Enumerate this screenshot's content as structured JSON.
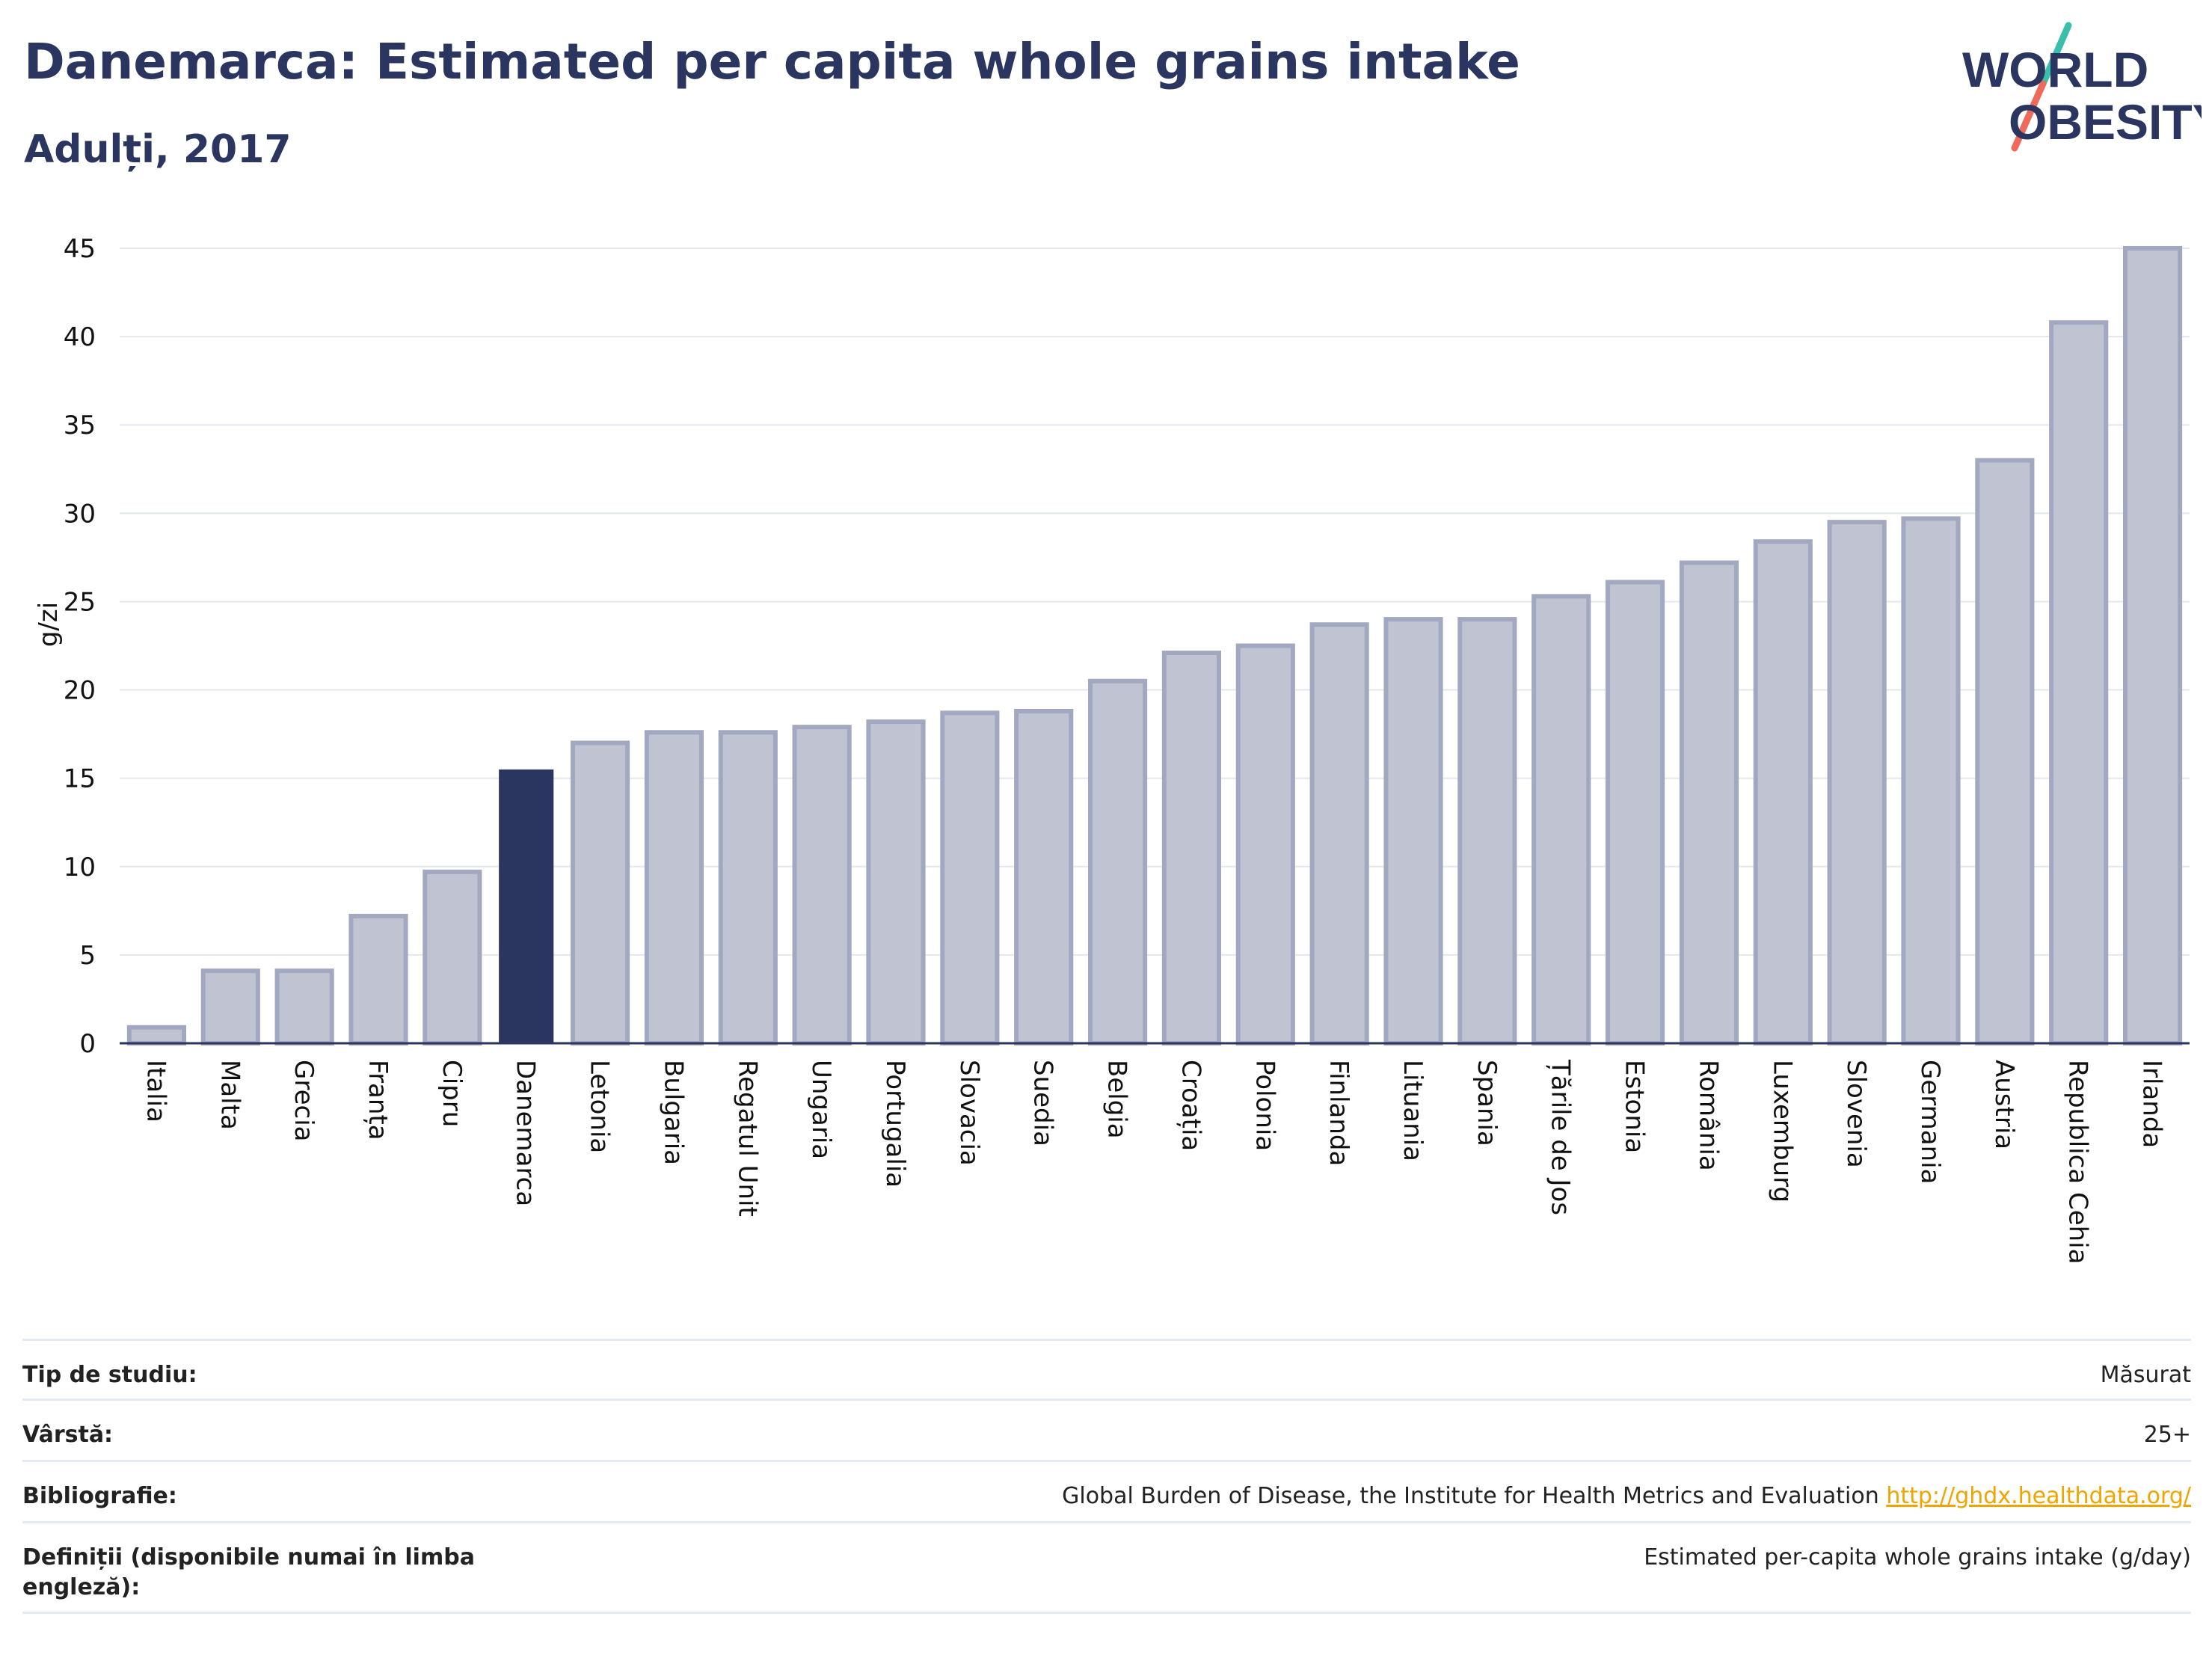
{
  "header": {
    "title": "Danemarca: Estimated per capita whole grains intake",
    "subtitle": "Adulți, 2017"
  },
  "logo": {
    "line1": "WORLD",
    "line2": "OBESITY"
  },
  "colors": {
    "highlight_bar": "#2b3660",
    "bar_fill": "#c0c4d2",
    "bar_stroke": "#a2a8c0",
    "grid": "#e5e7ee",
    "text": "#2b3660",
    "logo_teal": "#3bbfad",
    "logo_coral": "#ef6a5a",
    "link": "#f0a400"
  },
  "chart_data": {
    "type": "bar",
    "title": "Danemarca: Estimated per capita whole grains intake",
    "subtitle": "Adulți, 2017",
    "ylabel": "g/zi",
    "xlabel": "",
    "ylim": [
      0,
      45
    ],
    "yticks": [
      0,
      5,
      10,
      15,
      20,
      25,
      30,
      35,
      40,
      45
    ],
    "grid": true,
    "highlight": "Danemarca",
    "categories": [
      "Italia",
      "Malta",
      "Grecia",
      "Franța",
      "Cipru",
      "Danemarca",
      "Letonia",
      "Bulgaria",
      "Regatul Unit",
      "Ungaria",
      "Portugalia",
      "Slovacia",
      "Suedia",
      "Belgia",
      "Croația",
      "Polonia",
      "Finlanda",
      "Lituania",
      "Spania",
      "Țările de Jos",
      "Estonia",
      "România",
      "Luxemburg",
      "Slovenia",
      "Germania",
      "Austria",
      "Republica Cehia",
      "Irlanda"
    ],
    "values": [
      0.9,
      4.1,
      4.1,
      7.2,
      9.7,
      15.5,
      17.0,
      17.6,
      17.6,
      17.9,
      18.2,
      18.7,
      18.8,
      20.5,
      22.1,
      22.5,
      23.7,
      24.0,
      24.0,
      25.3,
      26.1,
      27.2,
      28.4,
      29.5,
      29.7,
      33.0,
      40.8,
      45.0
    ]
  },
  "info": {
    "rows": [
      {
        "label": "Tip de studiu:",
        "value": "Măsurat"
      },
      {
        "label": "Vârstă:",
        "value": "25+"
      },
      {
        "label": "Bibliografie:",
        "value": "Global Burden of Disease, the Institute for Health Metrics and Evaluation",
        "link": "http://ghdx.healthdata.org/"
      },
      {
        "label": "Definiții (disponibile numai în limba engleză):",
        "value": "Estimated per-capita whole grains intake (g/day)"
      }
    ]
  }
}
